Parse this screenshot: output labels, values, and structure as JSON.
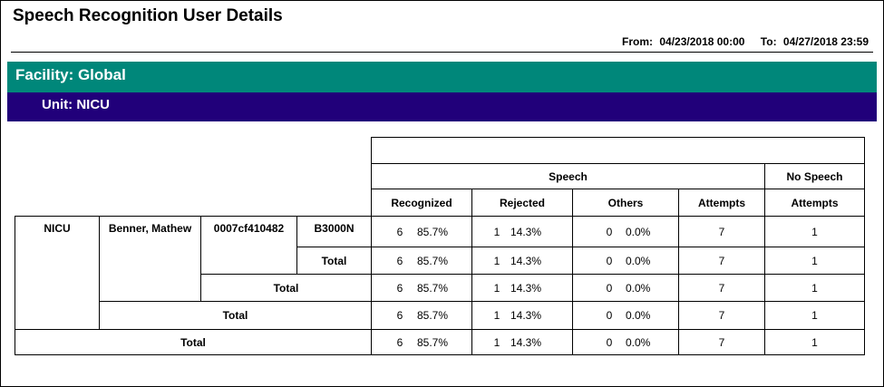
{
  "report": {
    "title": "Speech Recognition User Details",
    "from_label": "From:",
    "from_value": "04/23/2018 00:00",
    "to_label": "To:",
    "to_value": "04/27/2018 23:59"
  },
  "facility_label": "Facility: Global",
  "unit_label": "Unit: NICU",
  "colors": {
    "facility_band": "#00877a",
    "unit_band": "#21007a"
  },
  "header": {
    "speech": "Speech",
    "no_speech": "No Speech",
    "recognized": "Recognized",
    "rejected": "Rejected",
    "others": "Others",
    "attempts": "Attempts",
    "no_speech_attempts": "Attempts"
  },
  "detail": {
    "unit": "NICU",
    "user": "Benner, Mathew",
    "device": "0007cf410482",
    "model": "B3000N"
  },
  "total_label": "Total",
  "rows": [
    {
      "rec_n": "6",
      "rec_p": "85.7%",
      "rej_n": "1",
      "rej_p": "14.3%",
      "oth_n": "0",
      "oth_p": "0.0%",
      "attempts": "7",
      "ns_attempts": "1"
    },
    {
      "rec_n": "6",
      "rec_p": "85.7%",
      "rej_n": "1",
      "rej_p": "14.3%",
      "oth_n": "0",
      "oth_p": "0.0%",
      "attempts": "7",
      "ns_attempts": "1"
    },
    {
      "rec_n": "6",
      "rec_p": "85.7%",
      "rej_n": "1",
      "rej_p": "14.3%",
      "oth_n": "0",
      "oth_p": "0.0%",
      "attempts": "7",
      "ns_attempts": "1"
    },
    {
      "rec_n": "6",
      "rec_p": "85.7%",
      "rej_n": "1",
      "rej_p": "14.3%",
      "oth_n": "0",
      "oth_p": "0.0%",
      "attempts": "7",
      "ns_attempts": "1"
    },
    {
      "rec_n": "6",
      "rec_p": "85.7%",
      "rej_n": "1",
      "rej_p": "14.3%",
      "oth_n": "0",
      "oth_p": "0.0%",
      "attempts": "7",
      "ns_attempts": "1"
    }
  ]
}
